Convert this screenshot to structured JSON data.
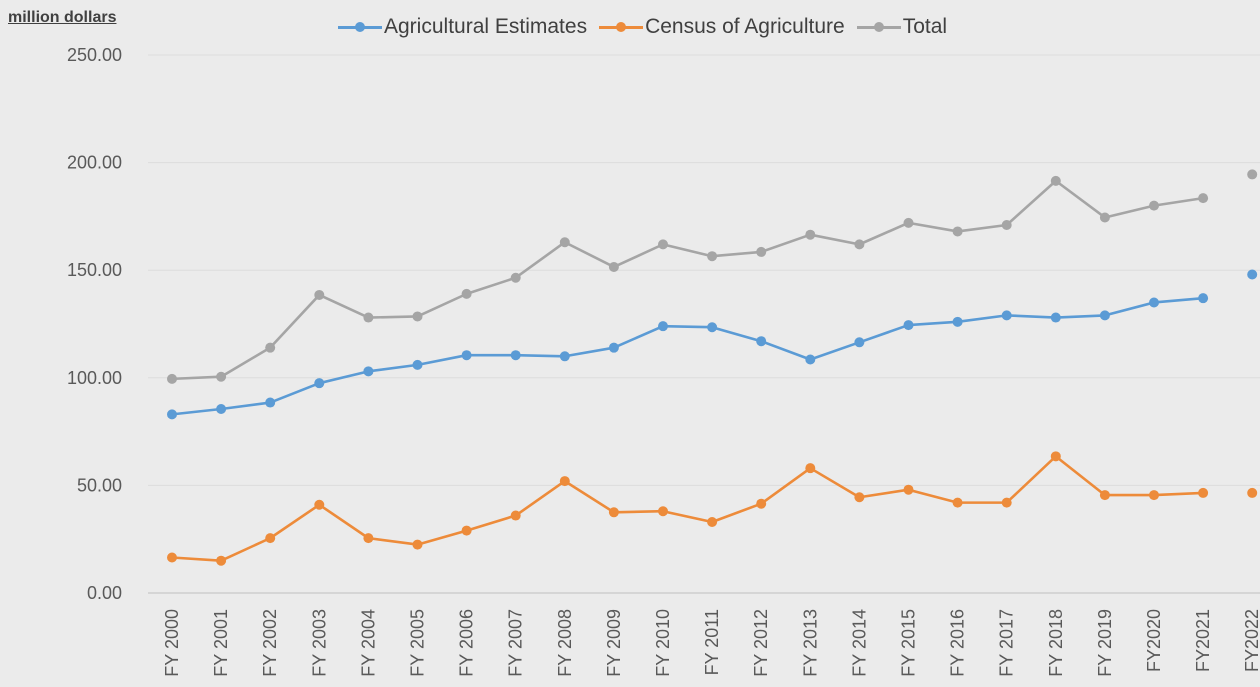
{
  "chart_data": {
    "type": "line",
    "ylabel": "million dollars",
    "ylim": [
      0,
      250
    ],
    "yticks": [
      "0.00",
      "50.00",
      "100.00",
      "150.00",
      "200.00",
      "250.00"
    ],
    "grid": true,
    "legend_position": "top-center",
    "categories": [
      "FY 2000",
      "FY 2001",
      "FY 2002",
      "FY 2003",
      "FY 2004",
      "FY 2005",
      "FY 2006",
      "FY 2007",
      "FY 2008",
      "FY 2009",
      "FY 2010",
      "FY 2011",
      "FY 2012",
      "FY 2013",
      "FY 2014",
      "FY 2015",
      "FY 2016",
      "FY 2017",
      "FY 2018",
      "FY 2019",
      "FY2020",
      "FY2021",
      "FY2022"
    ],
    "series": [
      {
        "name": "Agricultural Estimates",
        "color": "#5b9bd5",
        "values": [
          83.0,
          85.5,
          88.5,
          97.5,
          103.0,
          106.0,
          110.5,
          110.5,
          110.0,
          114.0,
          124.0,
          123.5,
          117.0,
          108.5,
          116.5,
          124.5,
          126.0,
          129.0,
          128.0,
          129.0,
          135.0,
          137.0,
          148.0
        ],
        "connected_through_index": 21
      },
      {
        "name": "Census of Agriculture",
        "color": "#ed8b3a",
        "values": [
          16.5,
          15.0,
          25.5,
          41.0,
          25.5,
          22.5,
          29.0,
          36.0,
          52.0,
          37.5,
          38.0,
          33.0,
          41.5,
          58.0,
          44.5,
          48.0,
          42.0,
          42.0,
          63.5,
          45.5,
          45.5,
          46.5,
          46.5
        ],
        "connected_through_index": 21
      },
      {
        "name": "Total",
        "color": "#a5a5a5",
        "values": [
          99.5,
          100.5,
          114.0,
          138.5,
          128.0,
          128.5,
          139.0,
          146.5,
          163.0,
          151.5,
          162.0,
          156.5,
          158.5,
          166.5,
          162.0,
          172.0,
          168.0,
          171.0,
          191.5,
          174.5,
          180.0,
          183.5,
          194.5
        ],
        "connected_through_index": 21
      }
    ]
  }
}
